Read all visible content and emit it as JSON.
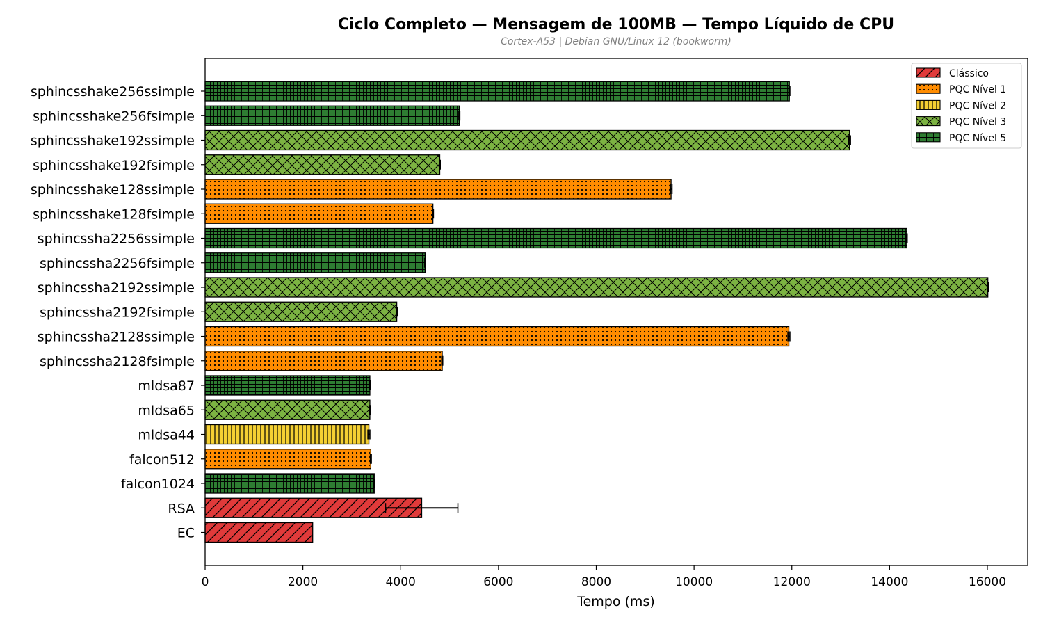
{
  "chart_data": {
    "type": "bar",
    "orientation": "horizontal",
    "title": "Ciclo Completo — Mensagem de 100MB — Tempo Líquido de CPU",
    "subtitle": "Cortex-A53 | Debian GNU/Linux 12 (bookworm)",
    "xlabel": "Tempo (ms)",
    "ylabel": "",
    "xlim": [
      0,
      16800
    ],
    "xticks": [
      0,
      2000,
      4000,
      6000,
      8000,
      10000,
      12000,
      14000,
      16000
    ],
    "grid": false,
    "legend_position": "top-right",
    "categories": [
      "sphincsshake256ssimple",
      "sphincsshake256fsimple",
      "sphincsshake192ssimple",
      "sphincsshake192fsimple",
      "sphincsshake128ssimple",
      "sphincsshake128fsimple",
      "sphincssha2256ssimple",
      "sphincssha2256fsimple",
      "sphincssha2192ssimple",
      "sphincssha2192fsimple",
      "sphincssha2128ssimple",
      "sphincssha2128fsimple",
      "mldsa87",
      "mldsa65",
      "mldsa44",
      "falcon512",
      "falcon1024",
      "RSA",
      "EC"
    ],
    "values": [
      11950,
      5200,
      13180,
      4800,
      9530,
      4660,
      14350,
      4500,
      16010,
      3920,
      11940,
      4850,
      3370,
      3370,
      3350,
      3390,
      3460,
      4430,
      2200
    ],
    "errors": [
      10,
      10,
      20,
      10,
      20,
      10,
      10,
      10,
      10,
      10,
      20,
      10,
      10,
      10,
      20,
      10,
      10,
      740,
      0
    ],
    "groups": [
      "n5",
      "n5",
      "n3",
      "n3",
      "n1",
      "n1",
      "n5",
      "n5",
      "n3",
      "n3",
      "n1",
      "n1",
      "n5",
      "n3",
      "n2",
      "n1",
      "n5",
      "cl",
      "cl"
    ],
    "series": [
      {
        "key": "cl",
        "name": "Clássico",
        "color": "#e03a3a",
        "hatch": "diagonal"
      },
      {
        "key": "n1",
        "name": "PQC Nível 1",
        "color": "#ff8c00",
        "hatch": "dots"
      },
      {
        "key": "n2",
        "name": "PQC Nível 2",
        "color": "#f5d033",
        "hatch": "vertical"
      },
      {
        "key": "n3",
        "name": "PQC Nível 3",
        "color": "#7cb342",
        "hatch": "cross"
      },
      {
        "key": "n5",
        "name": "PQC Nível 5",
        "color": "#2e7d32",
        "hatch": "grid"
      }
    ]
  }
}
